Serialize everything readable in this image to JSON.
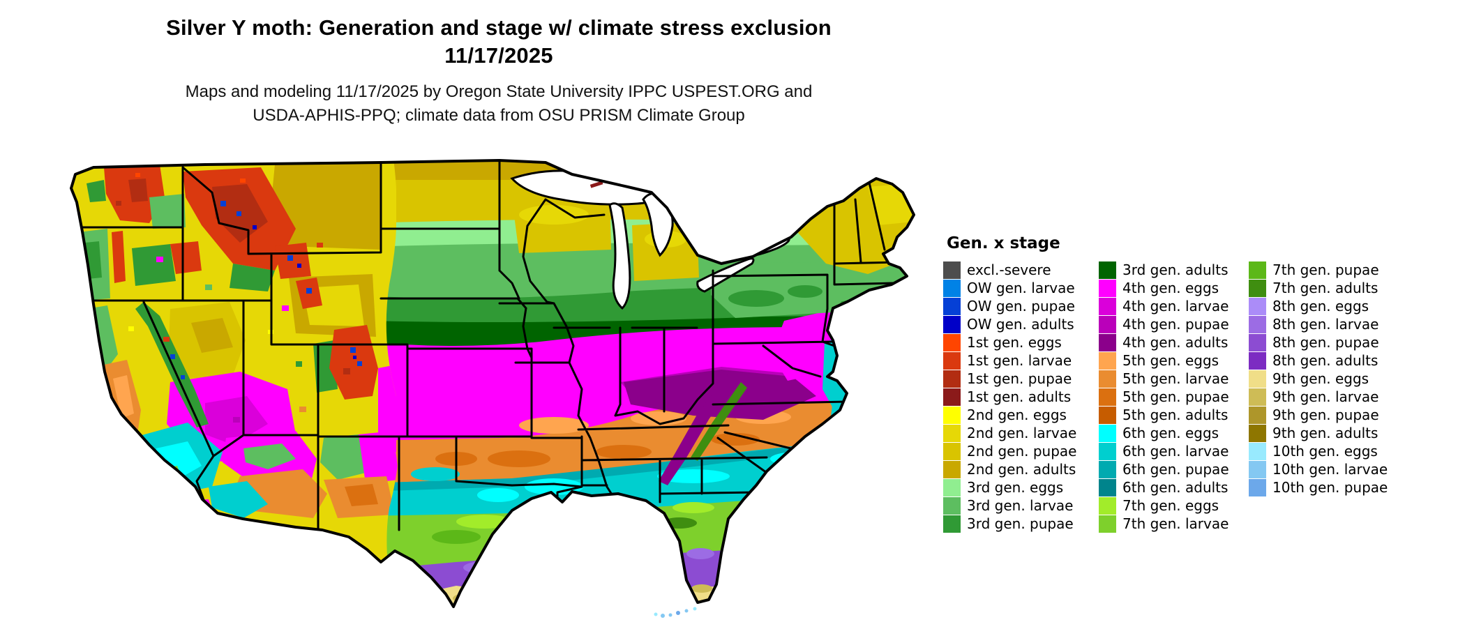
{
  "header": {
    "title_line1": "Silver Y moth: Generation and stage w/ climate stress exclusion",
    "title_line2": "11/17/2025",
    "subtitle_line1": "Maps and modeling 11/17/2025 by Oregon State University IPPC USPEST.ORG and",
    "subtitle_line2": "USDA-APHIS-PPQ; climate data from OSU PRISM Climate Group"
  },
  "legend": {
    "title": "Gen. x stage",
    "columns": [
      [
        {
          "key": "excl_severe",
          "label": "excl.-severe",
          "color": "#4D4D4D"
        },
        {
          "key": "ow_larvae",
          "label": "OW gen. larvae",
          "color": "#0082E6"
        },
        {
          "key": "ow_pupae",
          "label": "OW gen. pupae",
          "color": "#0540D6"
        },
        {
          "key": "ow_adults",
          "label": "OW gen. adults",
          "color": "#0000C8"
        },
        {
          "key": "g1_eggs",
          "label": "1st gen. eggs",
          "color": "#FF4500"
        },
        {
          "key": "g1_larvae",
          "label": "1st gen. larvae",
          "color": "#DA390F"
        },
        {
          "key": "g1_pupae",
          "label": "1st gen. pupae",
          "color": "#B22D12"
        },
        {
          "key": "g1_adults",
          "label": "1st gen. adults",
          "color": "#8B1A1A"
        },
        {
          "key": "g2_eggs",
          "label": "2nd gen. eggs",
          "color": "#FFFF00"
        },
        {
          "key": "g2_larvae",
          "label": "2nd gen. larvae",
          "color": "#E6D806"
        },
        {
          "key": "g2_pupae",
          "label": "2nd gen. pupae",
          "color": "#D9C400"
        },
        {
          "key": "g2_adults",
          "label": "2nd gen. adults",
          "color": "#C9A800"
        },
        {
          "key": "g3_eggs",
          "label": "3rd gen. eggs",
          "color": "#90EE90"
        },
        {
          "key": "g3_larvae",
          "label": "3rd gen. larvae",
          "color": "#5DBE60"
        },
        {
          "key": "g3_pupae",
          "label": "3rd gen. pupae",
          "color": "#309A35"
        }
      ],
      [
        {
          "key": "g3_adults",
          "label": "3rd gen. adults",
          "color": "#006400"
        },
        {
          "key": "g4_eggs",
          "label": "4th gen. eggs",
          "color": "#FF00FF"
        },
        {
          "key": "g4_larvae",
          "label": "4th gen. larvae",
          "color": "#DA00DA"
        },
        {
          "key": "g4_pupae",
          "label": "4th gen. pupae",
          "color": "#BA00BA"
        },
        {
          "key": "g4_adults",
          "label": "4th gen. adults",
          "color": "#8B008B"
        },
        {
          "key": "g5_eggs",
          "label": "5th gen. eggs",
          "color": "#FFA54F"
        },
        {
          "key": "g5_larvae",
          "label": "5th gen. larvae",
          "color": "#EA8C30"
        },
        {
          "key": "g5_pupae",
          "label": "5th gen. pupae",
          "color": "#DB7010"
        },
        {
          "key": "g5_adults",
          "label": "5th gen. adults",
          "color": "#C65C00"
        },
        {
          "key": "g6_eggs",
          "label": "6th gen. eggs",
          "color": "#00FFFF"
        },
        {
          "key": "g6_larvae",
          "label": "6th gen. larvae",
          "color": "#00CFCF"
        },
        {
          "key": "g6_pupae",
          "label": "6th gen. pupae",
          "color": "#00AAB0"
        },
        {
          "key": "g6_adults",
          "label": "6th gen. adults",
          "color": "#00848C"
        },
        {
          "key": "g7_eggs",
          "label": "7th gen. eggs",
          "color": "#A2EC2A"
        },
        {
          "key": "g7_larvae",
          "label": "7th gen. larvae",
          "color": "#7ED02C"
        }
      ],
      [
        {
          "key": "g7_pupae",
          "label": "7th gen. pupae",
          "color": "#5CB818"
        },
        {
          "key": "g7_adults",
          "label": "7th gen. adults",
          "color": "#3F8E10"
        },
        {
          "key": "g8_eggs",
          "label": "8th gen. eggs",
          "color": "#AB8CF8"
        },
        {
          "key": "g8_larvae",
          "label": "8th gen. larvae",
          "color": "#9C6CE4"
        },
        {
          "key": "g8_pupae",
          "label": "8th gen. pupae",
          "color": "#8C4CD2"
        },
        {
          "key": "g8_adults",
          "label": "8th gen. adults",
          "color": "#7C2CC2"
        },
        {
          "key": "g9_eggs",
          "label": "9th gen. eggs",
          "color": "#F0DE88"
        },
        {
          "key": "g9_larvae",
          "label": "9th gen. larvae",
          "color": "#CEBC56"
        },
        {
          "key": "g9_pupae",
          "label": "9th gen. pupae",
          "color": "#AE962A"
        },
        {
          "key": "g9_adults",
          "label": "9th gen. adults",
          "color": "#8E7600"
        },
        {
          "key": "g10_eggs",
          "label": "10th gen. eggs",
          "color": "#98EAFE"
        },
        {
          "key": "g10_larvae",
          "label": "10th gen. larvae",
          "color": "#84C8F2"
        },
        {
          "key": "g10_pupae",
          "label": "10th gen. pupae",
          "color": "#6CA8EA"
        }
      ]
    ]
  },
  "map": {
    "region": "Continental United States",
    "border_color": "#000000",
    "water_color": "#FFFFFF"
  }
}
